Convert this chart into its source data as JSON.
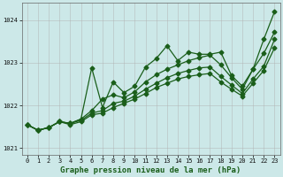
{
  "title": "",
  "xlabel": "Graphe pression niveau de la mer (hPa)",
  "xlim": [
    -0.5,
    23.5
  ],
  "ylim": [
    1020.85,
    1024.4
  ],
  "yticks": [
    1021,
    1022,
    1023,
    1024
  ],
  "xticks": [
    0,
    1,
    2,
    3,
    4,
    5,
    6,
    7,
    8,
    9,
    10,
    11,
    12,
    13,
    14,
    15,
    16,
    17,
    18,
    19,
    20,
    21,
    22,
    23
  ],
  "bg_color": "#cce8e8",
  "grid_color": "#b0b0b0",
  "line_color": "#1a5e1a",
  "lines": [
    [
      1021.55,
      1021.42,
      1021.48,
      1021.62,
      1021.58,
      1021.68,
      1022.88,
      1021.95,
      1022.55,
      1022.3,
      1022.45,
      1022.9,
      1023.1,
      1023.4,
      1023.05,
      1023.25,
      1023.2,
      1023.2,
      1023.25,
      1022.7,
      1022.45,
      1022.85,
      1023.55,
      1024.2
    ],
    [
      1021.55,
      1021.42,
      1021.48,
      1021.62,
      1021.58,
      1021.68,
      1021.88,
      1022.15,
      1022.25,
      1022.18,
      1022.32,
      1022.55,
      1022.72,
      1022.85,
      1022.95,
      1023.05,
      1023.12,
      1023.18,
      1022.95,
      1022.65,
      1022.38,
      1022.85,
      1023.22,
      1023.72
    ],
    [
      1021.55,
      1021.42,
      1021.48,
      1021.62,
      1021.58,
      1021.65,
      1021.82,
      1021.88,
      1022.05,
      1022.1,
      1022.22,
      1022.38,
      1022.52,
      1022.65,
      1022.75,
      1022.82,
      1022.88,
      1022.9,
      1022.68,
      1022.48,
      1022.28,
      1022.62,
      1022.92,
      1023.55
    ],
    [
      1021.55,
      1021.42,
      1021.48,
      1021.62,
      1021.55,
      1021.62,
      1021.78,
      1021.82,
      1021.95,
      1022.05,
      1022.15,
      1022.28,
      1022.42,
      1022.52,
      1022.62,
      1022.68,
      1022.72,
      1022.75,
      1022.55,
      1022.38,
      1022.22,
      1022.52,
      1022.82,
      1023.35
    ]
  ],
  "marker": "D",
  "marker_size": 2.5,
  "linewidth": 0.9,
  "font_family": "monospace",
  "tick_fontsize": 5,
  "xlabel_fontsize": 6.5
}
